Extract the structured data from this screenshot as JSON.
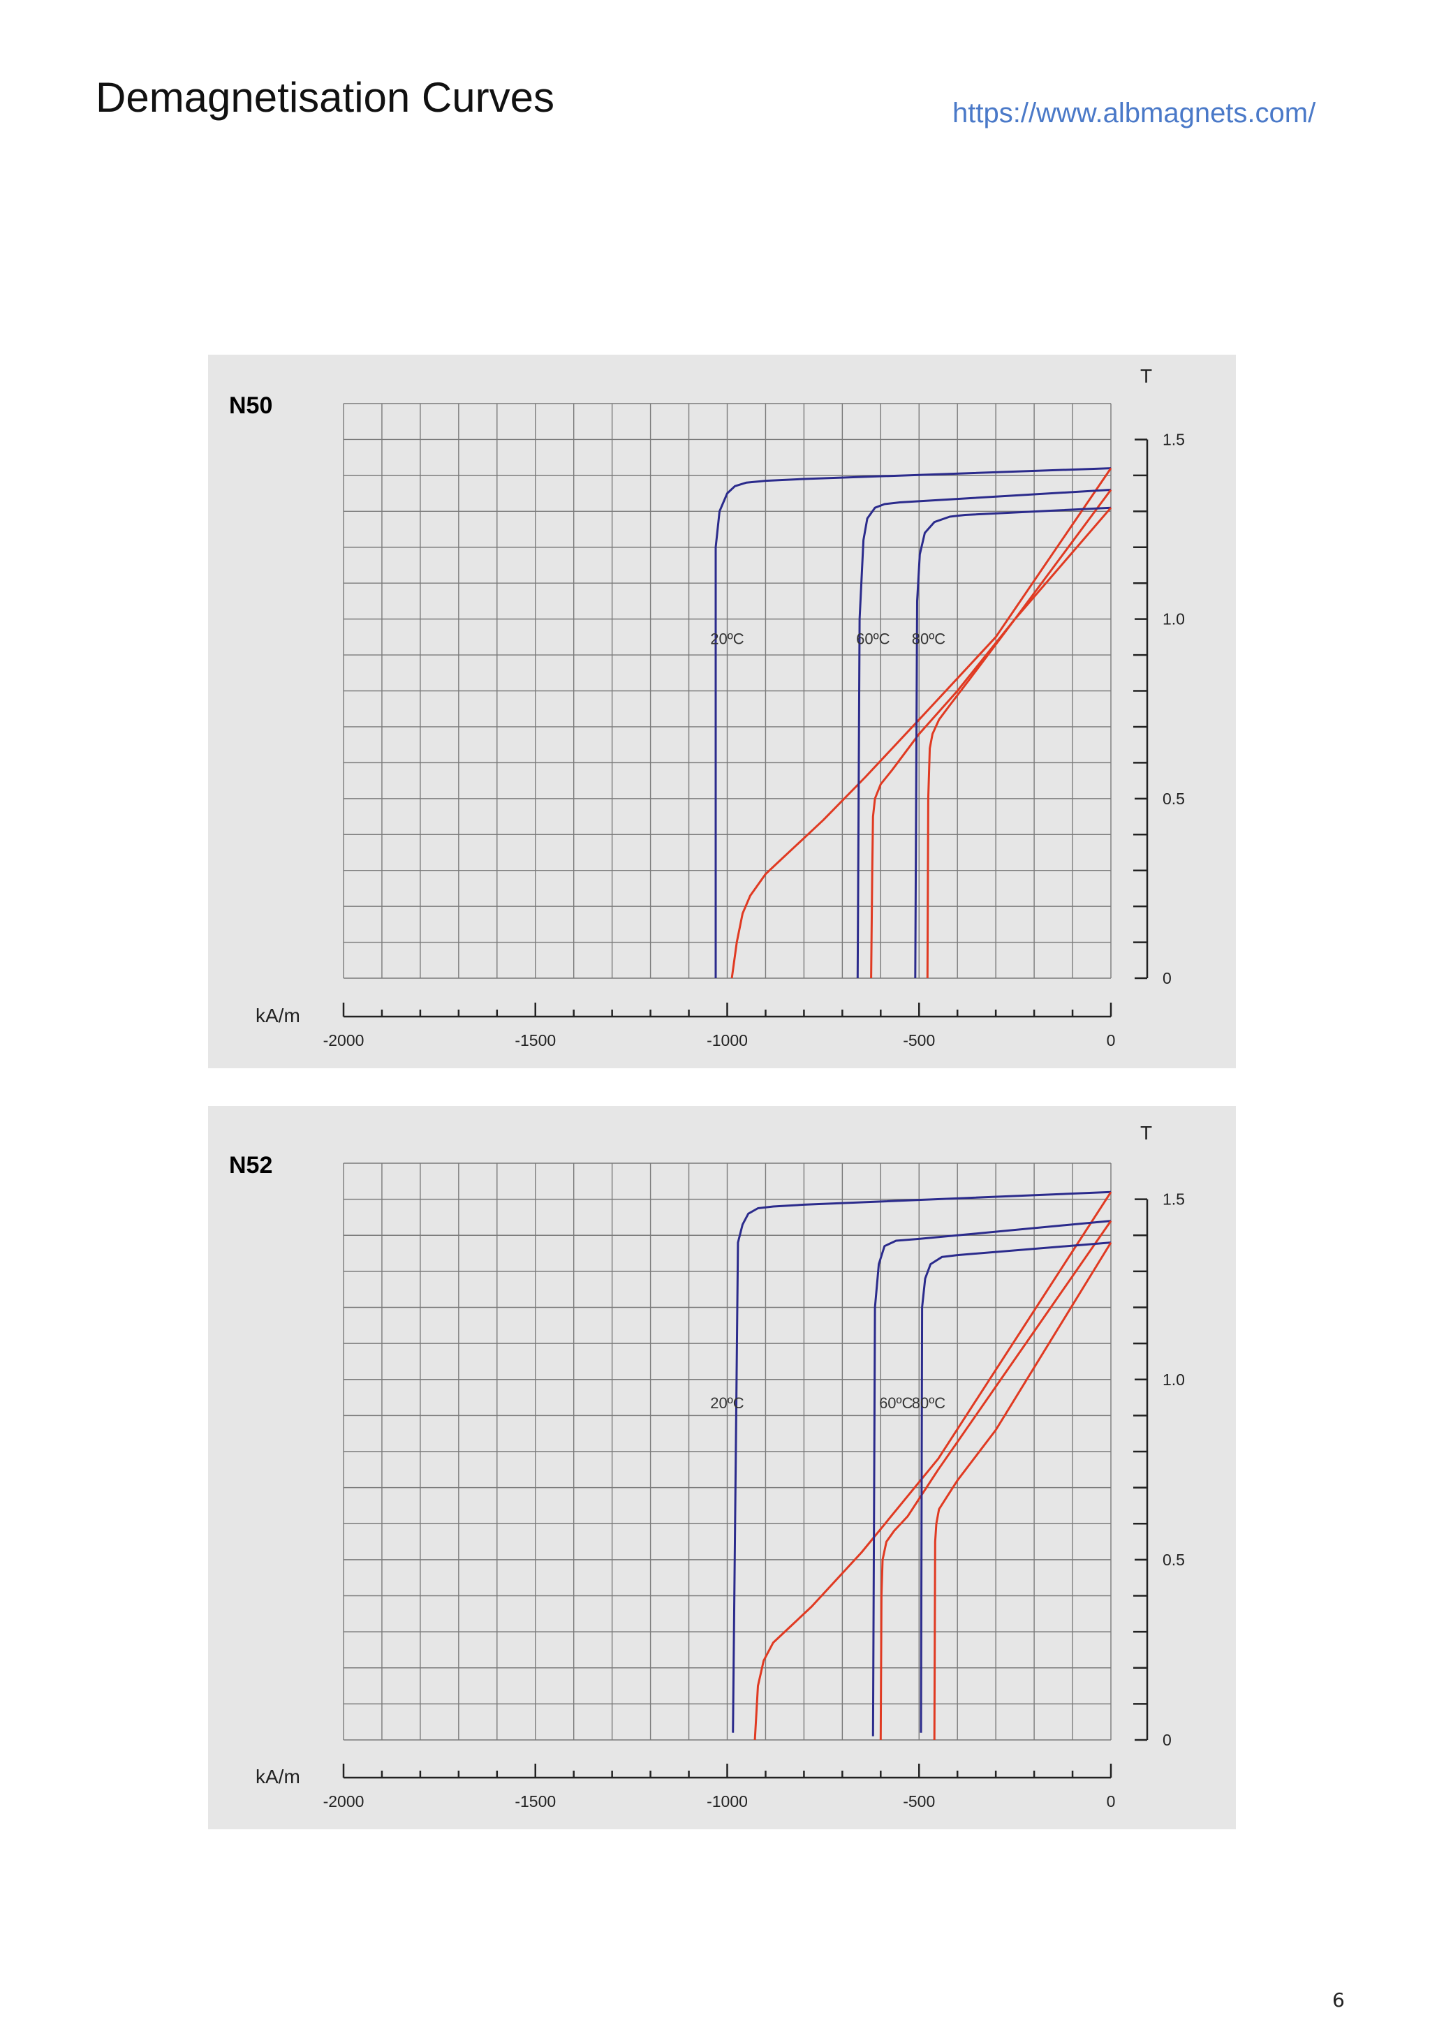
{
  "page": {
    "title": "Demagnetisation Curves",
    "link": "https://www.albmagnets.com/",
    "page_number": "6"
  },
  "colors": {
    "panel_bg": "#e6e6e6",
    "grid": "#7a7a7a",
    "curve_B": "#2b2b8c",
    "curve_J": "#e03a22",
    "title_text": "#111111",
    "link": "#4a79c8"
  },
  "chart_data": [
    {
      "type": "line",
      "title": "N50",
      "xlabel": "kA/m",
      "ylabel": "T",
      "xlim": [
        -2000,
        0
      ],
      "ylim": [
        0,
        1.5
      ],
      "x_ticks": [
        -2000,
        -1500,
        -1000,
        -500,
        0
      ],
      "y_ticks": [
        0,
        0.5,
        1.0,
        1.5
      ],
      "x_tick_labels": [
        "-2000",
        "-1500",
        "-1000",
        "-500",
        "0"
      ],
      "y_tick_labels": [
        "0",
        "0.5",
        "1.0",
        "1.5"
      ],
      "grid": true,
      "series": [
        {
          "name": "20ºC",
          "kind": "J",
          "x": [
            -1030,
            -1030,
            -1020,
            -1000,
            -980,
            -950,
            -900,
            -800,
            0
          ],
          "y": [
            0,
            1.2,
            1.3,
            1.35,
            1.37,
            1.38,
            1.385,
            1.39,
            1.42
          ]
        },
        {
          "name": "20ºC",
          "kind": "B",
          "x": [
            -988,
            -975,
            -960,
            -940,
            -920,
            -900,
            -870,
            -820,
            -750,
            -640,
            -500,
            -300,
            0
          ],
          "y": [
            0,
            0.1,
            0.18,
            0.23,
            0.26,
            0.29,
            0.32,
            0.37,
            0.44,
            0.56,
            0.72,
            0.95,
            1.42
          ]
        },
        {
          "name": "60ºC",
          "kind": "J",
          "x": [
            -660,
            -655,
            -645,
            -635,
            -615,
            -590,
            -550,
            0
          ],
          "y": [
            0,
            1.0,
            1.22,
            1.28,
            1.31,
            1.32,
            1.325,
            1.36
          ]
        },
        {
          "name": "60ºC",
          "kind": "B",
          "x": [
            -625,
            -622,
            -620,
            -615,
            -600,
            -570,
            -500,
            -400,
            -250,
            0
          ],
          "y": [
            0,
            0.3,
            0.45,
            0.5,
            0.54,
            0.58,
            0.68,
            0.8,
            1.0,
            1.36
          ]
        },
        {
          "name": "80ºC",
          "kind": "J",
          "x": [
            -510,
            -505,
            -498,
            -485,
            -460,
            -420,
            -380,
            0
          ],
          "y": [
            0,
            1.05,
            1.18,
            1.24,
            1.27,
            1.285,
            1.29,
            1.31
          ]
        },
        {
          "name": "80ºC",
          "kind": "B",
          "x": [
            -478,
            -476,
            -472,
            -465,
            -448,
            -420,
            -370,
            -250,
            0
          ],
          "y": [
            0,
            0.5,
            0.64,
            0.68,
            0.72,
            0.76,
            0.83,
            1.0,
            1.31
          ]
        }
      ],
      "annotations": [
        {
          "text": "20ºC",
          "x": -1000,
          "y": 0.93
        },
        {
          "text": "60ºC",
          "x": -620,
          "y": 0.93
        },
        {
          "text": "80ºC",
          "x": -475,
          "y": 0.93
        }
      ]
    },
    {
      "type": "line",
      "title": "N52",
      "xlabel": "kA/m",
      "ylabel": "T",
      "xlim": [
        -2000,
        0
      ],
      "ylim": [
        0,
        1.5
      ],
      "x_ticks": [
        -2000,
        -1500,
        -1000,
        -500,
        0
      ],
      "y_ticks": [
        0,
        0.5,
        1.0,
        1.5
      ],
      "x_tick_labels": [
        "-2000",
        "-1500",
        "-1000",
        "-500",
        "0"
      ],
      "y_tick_labels": [
        "0",
        "0.5",
        "1.0",
        "1.5"
      ],
      "grid": true,
      "series": [
        {
          "name": "20ºC",
          "kind": "J",
          "x": [
            -985,
            -972,
            -960,
            -945,
            -920,
            -880,
            -800,
            0
          ],
          "y": [
            0.02,
            1.38,
            1.43,
            1.46,
            1.475,
            1.48,
            1.485,
            1.52
          ]
        },
        {
          "name": "20ºC",
          "kind": "B",
          "x": [
            -928,
            -920,
            -905,
            -880,
            -840,
            -780,
            -650,
            -450,
            0
          ],
          "y": [
            0,
            0.15,
            0.22,
            0.27,
            0.31,
            0.37,
            0.52,
            0.78,
            1.52
          ]
        },
        {
          "name": "60ºC",
          "kind": "J",
          "x": [
            -620,
            -615,
            -605,
            -590,
            -560,
            -500,
            0
          ],
          "y": [
            0.01,
            1.2,
            1.32,
            1.37,
            1.385,
            1.39,
            1.44
          ]
        },
        {
          "name": "60ºC",
          "kind": "B",
          "x": [
            -600,
            -598,
            -595,
            -585,
            -565,
            -530,
            -450,
            0
          ],
          "y": [
            0,
            0.4,
            0.5,
            0.55,
            0.58,
            0.62,
            0.75,
            1.44
          ]
        },
        {
          "name": "80ºC",
          "kind": "J",
          "x": [
            -495,
            -492,
            -484,
            -470,
            -440,
            -400,
            0
          ],
          "y": [
            0.02,
            1.2,
            1.28,
            1.32,
            1.34,
            1.345,
            1.38
          ]
        },
        {
          "name": "80ºC",
          "kind": "B",
          "x": [
            -460,
            -458,
            -455,
            -448,
            -430,
            -400,
            -300,
            0
          ],
          "y": [
            0,
            0.55,
            0.6,
            0.64,
            0.67,
            0.72,
            0.86,
            1.38
          ]
        }
      ],
      "annotations": [
        {
          "text": "20ºC",
          "x": -1000,
          "y": 0.92
        },
        {
          "text": "60ºC",
          "x": -560,
          "y": 0.92
        },
        {
          "text": "80ºC",
          "x": -475,
          "y": 0.92
        }
      ]
    }
  ]
}
